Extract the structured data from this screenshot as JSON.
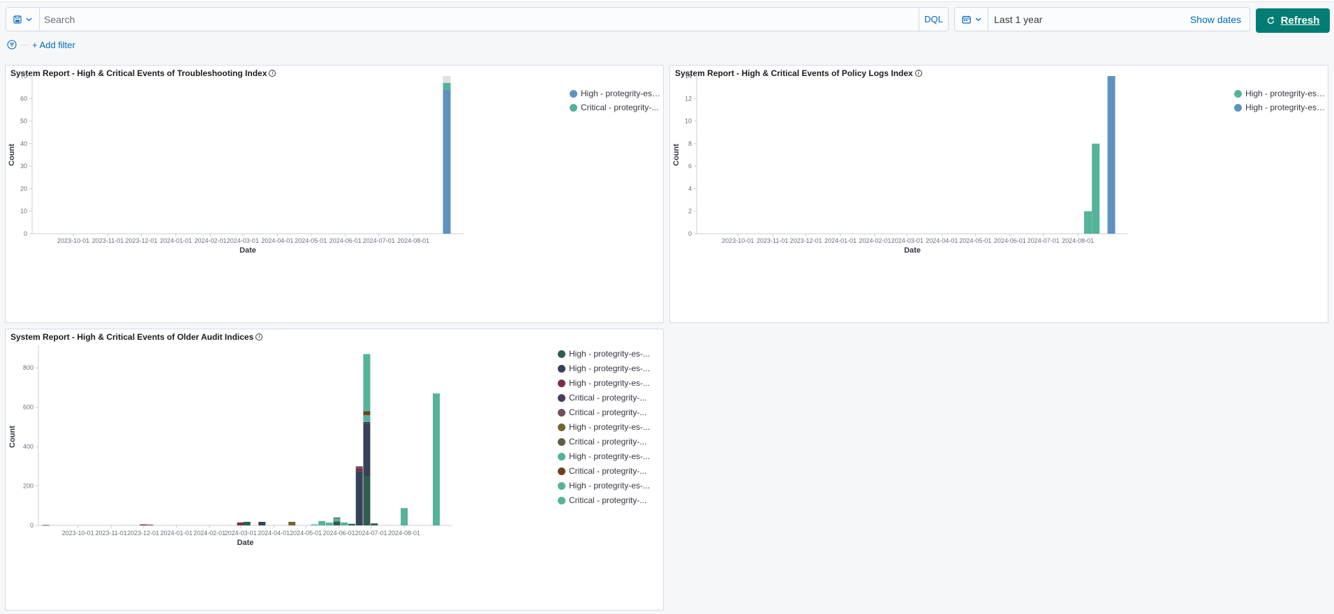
{
  "query": {
    "placeholder": "Search",
    "language": "DQL"
  },
  "date": {
    "value": "Last 1 year",
    "show_dates_label": "Show dates",
    "refresh_label": "Refresh"
  },
  "filters": {
    "add_filter_label": "+ Add filter"
  },
  "icons": {
    "saved_query": "save-icon",
    "calendar": "calendar-icon",
    "refresh": "refresh-icon",
    "filter": "filter-icon"
  },
  "colors": {
    "accent": "#006bb8",
    "refresh_bg": "#017d73"
  },
  "panels": [
    {
      "title": "System Report - High & Critical Events of Troubleshooting Index",
      "legend": [
        {
          "label": "High - protegrity-es-...",
          "color": "#6092c0"
        },
        {
          "label": "Critical - protegrity-...",
          "color": "#54b399"
        }
      ]
    },
    {
      "title": "System Report - High & Critical Events of Policy Logs Index",
      "legend": [
        {
          "label": "High - protegrity-es-...",
          "color": "#54b399"
        },
        {
          "label": "High - protegrity-es-...",
          "color": "#6092c0"
        }
      ]
    },
    {
      "title": "System Report - High & Critical Events of Older Audit Indices",
      "legend": [
        {
          "label": "High - protegrity-es-...",
          "color": "#2e5c4f"
        },
        {
          "label": "High - protegrity-es-...",
          "color": "#36415a"
        },
        {
          "label": "High - protegrity-es-...",
          "color": "#7a2e45"
        },
        {
          "label": "Critical - protegrity-...",
          "color": "#4a3b5e"
        },
        {
          "label": "Critical - protegrity-...",
          "color": "#6e5060"
        },
        {
          "label": "High - protegrity-es-...",
          "color": "#6f6730"
        },
        {
          "label": "Critical - protegrity-...",
          "color": "#5f5c48"
        },
        {
          "label": "High - protegrity-es-...",
          "color": "#54b399"
        },
        {
          "label": "Critical - protegrity-...",
          "color": "#6e4020"
        },
        {
          "label": "High - protegrity-es-...",
          "color": "#54b399"
        },
        {
          "label": "Critical - protegrity-...",
          "color": "#54b399"
        }
      ]
    }
  ],
  "chart_data": [
    {
      "type": "bar",
      "stacked": true,
      "title": "System Report - High & Critical Events of Troubleshooting Index",
      "xlabel": "Date",
      "ylabel": "Count",
      "ylim": [
        0,
        70
      ],
      "yticks": [
        0,
        10,
        20,
        30,
        40,
        50,
        60,
        70
      ],
      "x_range": [
        "2023-08-25",
        "2024-09-15"
      ],
      "x_ticks": [
        "2023-10-01",
        "2023-11-01",
        "2023-12-01",
        "2024-01-01",
        "2024-02-01",
        "2024-03-01",
        "2024-04-01",
        "2024-05-01",
        "2024-06-01",
        "2024-07-01",
        "2024-08-01"
      ],
      "legend_position": "top-right",
      "grid": false,
      "bars": [
        {
          "x": "2024-08-31",
          "segments": [
            {
              "series": 0,
              "value": 64,
              "color": "#6092c0"
            },
            {
              "series": 1,
              "value": 3,
              "color": "#54b399"
            },
            {
              "series": -1,
              "value": 3,
              "color": "#e0e0e4"
            }
          ]
        }
      ]
    },
    {
      "type": "bar",
      "stacked": true,
      "title": "System Report - High & Critical Events of Policy Logs Index",
      "xlabel": "Date",
      "ylabel": "Count",
      "ylim": [
        0,
        14
      ],
      "yticks": [
        0,
        2,
        4,
        6,
        8,
        10,
        12,
        14
      ],
      "x_range": [
        "2023-08-25",
        "2024-09-15"
      ],
      "x_ticks": [
        "2023-10-01",
        "2023-11-01",
        "2023-12-01",
        "2024-01-01",
        "2024-02-01",
        "2024-03-01",
        "2024-04-01",
        "2024-05-01",
        "2024-06-01",
        "2024-07-01",
        "2024-08-01"
      ],
      "legend_position": "top-right",
      "grid": false,
      "bars": [
        {
          "x": "2024-08-10",
          "segments": [
            {
              "series": 0,
              "value": 2,
              "color": "#54b399"
            }
          ]
        },
        {
          "x": "2024-08-17",
          "segments": [
            {
              "series": 0,
              "value": 8,
              "color": "#54b399"
            }
          ]
        },
        {
          "x": "2024-08-31",
          "segments": [
            {
              "series": 1,
              "value": 14,
              "color": "#6092c0"
            }
          ]
        }
      ]
    },
    {
      "type": "bar",
      "stacked": true,
      "title": "System Report - High & Critical Events of Older Audit Indices",
      "xlabel": "Date",
      "ylabel": "Count",
      "ylim": [
        0,
        900
      ],
      "yticks": [
        0,
        200,
        400,
        600,
        800
      ],
      "x_range": [
        "2023-08-25",
        "2024-09-15"
      ],
      "x_ticks": [
        "2023-10-01",
        "2023-11-01",
        "2023-12-01",
        "2024-01-01",
        "2024-02-01",
        "2024-03-01",
        "2024-04-01",
        "2024-05-01",
        "2024-06-01",
        "2024-07-01",
        "2024-08-01"
      ],
      "legend_position": "top-right",
      "grid": false,
      "bars": [
        {
          "x": "2023-09-01",
          "segments": [
            {
              "series": 1,
              "value": 2,
              "color": "#36415a"
            }
          ]
        },
        {
          "x": "2023-12-01",
          "segments": [
            {
              "series": 2,
              "value": 5,
              "color": "#7a2e45"
            }
          ]
        },
        {
          "x": "2023-12-07",
          "segments": [
            {
              "series": 4,
              "value": 4,
              "color": "#6e5060"
            }
          ]
        },
        {
          "x": "2024-03-01",
          "segments": [
            {
              "series": 2,
              "value": 15,
              "color": "#7a2e45"
            }
          ]
        },
        {
          "x": "2024-03-07",
          "segments": [
            {
              "series": 0,
              "value": 18,
              "color": "#2e5c4f"
            }
          ]
        },
        {
          "x": "2024-03-21",
          "segments": [
            {
              "series": 1,
              "value": 18,
              "color": "#36415a"
            }
          ]
        },
        {
          "x": "2024-04-18",
          "segments": [
            {
              "series": 5,
              "value": 18,
              "color": "#6f6730"
            }
          ]
        },
        {
          "x": "2024-05-09",
          "segments": [
            {
              "series": 7,
              "value": 5,
              "color": "#54b399"
            }
          ]
        },
        {
          "x": "2024-05-16",
          "segments": [
            {
              "series": 7,
              "value": 22,
              "color": "#54b399"
            }
          ]
        },
        {
          "x": "2024-05-23",
          "segments": [
            {
              "series": 7,
              "value": 14,
              "color": "#54b399"
            }
          ]
        },
        {
          "x": "2024-05-30",
          "segments": [
            {
              "series": 0,
              "value": 20,
              "color": "#2e5c4f"
            },
            {
              "series": 7,
              "value": 15,
              "color": "#54b399"
            },
            {
              "series": 6,
              "value": 5,
              "color": "#5f5c48"
            }
          ]
        },
        {
          "x": "2024-06-06",
          "segments": [
            {
              "series": 7,
              "value": 15,
              "color": "#54b399"
            }
          ]
        },
        {
          "x": "2024-06-13",
          "segments": [
            {
              "series": 0,
              "value": 8,
              "color": "#2e5c4f"
            }
          ]
        },
        {
          "x": "2024-06-20",
          "segments": [
            {
              "series": 1,
              "value": 275,
              "color": "#36415a"
            },
            {
              "series": 2,
              "value": 15,
              "color": "#7a2e45"
            },
            {
              "series": 4,
              "value": 10,
              "color": "#6e5060"
            }
          ]
        },
        {
          "x": "2024-06-27",
          "segments": [
            {
              "series": 0,
              "value": 250,
              "color": "#2e5c4f"
            },
            {
              "series": 1,
              "value": 265,
              "color": "#36415a"
            },
            {
              "series": 3,
              "value": 10,
              "color": "#4a3b5e"
            },
            {
              "series": 7,
              "value": 35,
              "color": "#54b399"
            },
            {
              "series": 8,
              "value": 20,
              "color": "#6e4020"
            },
            {
              "series": 9,
              "value": 290,
              "color": "#54b399"
            }
          ]
        },
        {
          "x": "2024-07-04",
          "segments": [
            {
              "series": 0,
              "value": 10,
              "color": "#2e5c4f"
            }
          ]
        },
        {
          "x": "2024-08-01",
          "segments": [
            {
              "series": 7,
              "value": 88,
              "color": "#54b399"
            }
          ]
        },
        {
          "x": "2024-08-31",
          "segments": [
            {
              "series": 10,
              "value": 670,
              "color": "#54b399"
            }
          ]
        }
      ]
    }
  ]
}
